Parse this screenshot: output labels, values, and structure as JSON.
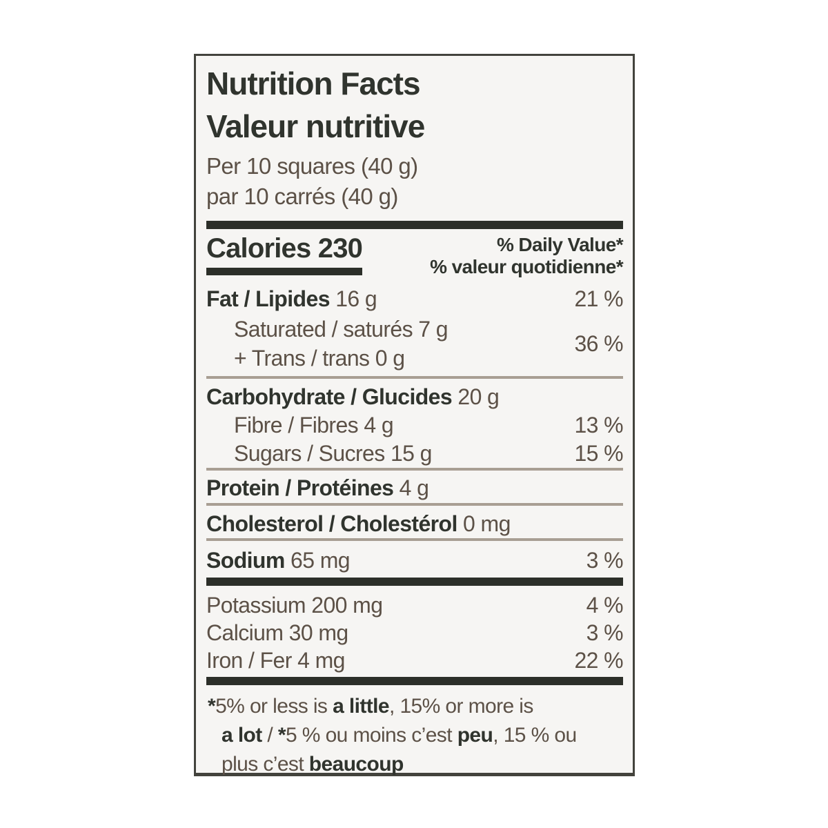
{
  "label": {
    "title_en": "Nutrition Facts",
    "title_fr": "Valeur nutritive",
    "serving_en": "Per 10 squares (40 g)",
    "serving_fr": "par 10 carrés (40 g)",
    "calories_label": "Calories",
    "calories_value": "230",
    "dv_header_en": "% Daily Value*",
    "dv_header_fr": "% valeur quotidienne*",
    "rows": {
      "fat": {
        "name": "Fat / Lipides",
        "amount": "16 g",
        "dv": "21 %"
      },
      "saturated": {
        "name": "Saturated / saturés 7 g"
      },
      "trans": {
        "name": "+ Trans / trans 0 g"
      },
      "sat_trans_dv": "36 %",
      "carbohydrate": {
        "name": "Carbohydrate / Glucides",
        "amount": "20 g"
      },
      "fibre": {
        "name": "Fibre / Fibres 4 g",
        "dv": "13 %"
      },
      "sugars": {
        "name": "Sugars / Sucres 15 g",
        "dv": "15 %"
      },
      "protein": {
        "name": "Protein / Protéines",
        "amount": "4 g"
      },
      "cholesterol": {
        "name": "Cholesterol / Cholestérol",
        "amount": "0 mg"
      },
      "sodium": {
        "name": "Sodium",
        "amount": "65 mg",
        "dv": "3 %"
      },
      "potassium": {
        "name": "Potassium 200 mg",
        "dv": "4 %"
      },
      "calcium": {
        "name": "Calcium 30 mg",
        "dv": "3 %"
      },
      "iron": {
        "name": "Iron / Fer 4 mg",
        "dv": "22 %"
      }
    },
    "footnote": {
      "l1_star": "*",
      "l1_a": "5% or less is ",
      "l1_b": "a little",
      "l1_c": ", 15% or more is",
      "l2_a": "a lot",
      "l2_b": " / ",
      "l2_c": "*",
      "l2_d": "5 % ou moins c’est ",
      "l2_e": "peu",
      "l2_f": ", 15 % ou",
      "l3_a": "plus c’est ",
      "l3_b": "beaucoup"
    }
  }
}
